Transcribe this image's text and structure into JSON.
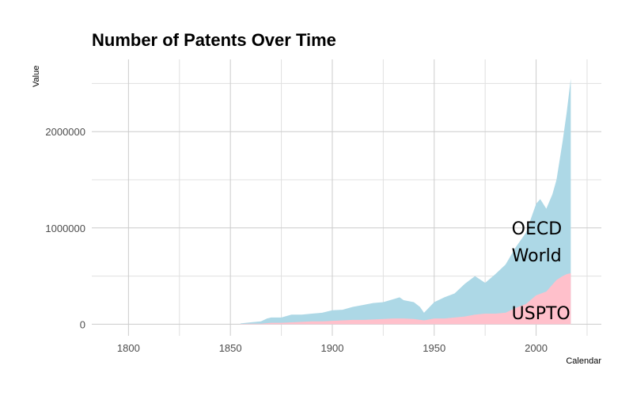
{
  "chart_data": {
    "type": "area",
    "title": "Number of Patents Over Time",
    "xlabel": "Calendar",
    "ylabel": "Value",
    "xlim": [
      1782,
      2032
    ],
    "ylim": [
      -120000,
      2750000
    ],
    "x_ticks": [
      1800,
      1850,
      1900,
      1950,
      2000
    ],
    "x_tick_labels": [
      "1800",
      "1850",
      "1900",
      "1950",
      "2000"
    ],
    "y_ticks": [
      0,
      1000000,
      2000000
    ],
    "y_tick_labels": [
      "0",
      "1000000",
      "2000000"
    ],
    "grid": true,
    "legend": "none",
    "colors": {
      "OECD World": "#add8e6",
      "USPTO": "#ffc0cb"
    },
    "annotations": [
      {
        "text": "OECD",
        "x": 1988,
        "y": 1000000
      },
      {
        "text": "World",
        "x": 1988,
        "y": 720000
      },
      {
        "text": "USPTO",
        "x": 1988,
        "y": 120000
      }
    ],
    "series": [
      {
        "name": "OECD World",
        "x": [
          1855,
          1860,
          1865,
          1868,
          1870,
          1875,
          1880,
          1885,
          1890,
          1895,
          1900,
          1905,
          1910,
          1915,
          1920,
          1925,
          1930,
          1933,
          1935,
          1940,
          1943,
          1945,
          1950,
          1955,
          1960,
          1965,
          1970,
          1975,
          1980,
          1985,
          1990,
          1995,
          2000,
          2002,
          2005,
          2008,
          2010,
          2013,
          2015,
          2017
        ],
        "values": [
          8000,
          20000,
          30000,
          60000,
          70000,
          70000,
          100000,
          100000,
          110000,
          120000,
          145000,
          150000,
          180000,
          200000,
          220000,
          230000,
          260000,
          280000,
          250000,
          230000,
          180000,
          120000,
          230000,
          280000,
          320000,
          420000,
          500000,
          430000,
          520000,
          620000,
          800000,
          950000,
          1250000,
          1300000,
          1200000,
          1350000,
          1500000,
          1900000,
          2200000,
          2550000
        ]
      },
      {
        "name": "USPTO",
        "x": [
          1855,
          1860,
          1865,
          1870,
          1875,
          1880,
          1885,
          1890,
          1895,
          1900,
          1905,
          1910,
          1915,
          1920,
          1925,
          1930,
          1935,
          1940,
          1945,
          1950,
          1955,
          1960,
          1965,
          1970,
          1975,
          1980,
          1985,
          1990,
          1995,
          2000,
          2005,
          2010,
          2013,
          2015,
          2017
        ],
        "values": [
          3000,
          5000,
          5000,
          15000,
          15000,
          20000,
          25000,
          30000,
          30000,
          35000,
          40000,
          45000,
          45000,
          50000,
          55000,
          60000,
          60000,
          55000,
          40000,
          60000,
          60000,
          70000,
          80000,
          100000,
          110000,
          110000,
          120000,
          170000,
          210000,
          300000,
          340000,
          460000,
          500000,
          520000,
          530000
        ]
      }
    ]
  }
}
